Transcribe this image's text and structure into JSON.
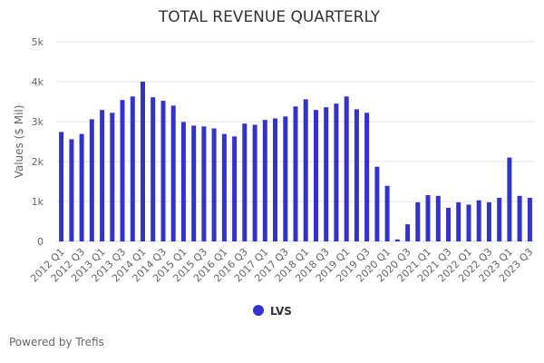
{
  "chart_data": {
    "type": "bar",
    "title": "TOTAL REVENUE QUARTERLY",
    "xlabel": "",
    "ylabel": "Values ($ Mil)",
    "ylim": [
      0,
      5000
    ],
    "yticks": [
      0,
      1000,
      2000,
      3000,
      4000,
      5000
    ],
    "ytick_labels": [
      "0",
      "1k",
      "2k",
      "3k",
      "4k",
      "5k"
    ],
    "grid": true,
    "legend_position": "bottom-center",
    "categories": [
      "2012 Q1",
      "2012 Q2",
      "2012 Q3",
      "2012 Q4",
      "2013 Q1",
      "2013 Q2",
      "2013 Q3",
      "2013 Q4",
      "2014 Q1",
      "2014 Q2",
      "2014 Q3",
      "2014 Q4",
      "2015 Q1",
      "2015 Q2",
      "2015 Q3",
      "2015 Q4",
      "2016 Q1",
      "2016 Q2",
      "2016 Q3",
      "2016 Q4",
      "2017 Q1",
      "2017 Q2",
      "2017 Q3",
      "2017 Q4",
      "2018 Q1",
      "2018 Q2",
      "2018 Q3",
      "2018 Q4",
      "2019 Q1",
      "2019 Q2",
      "2019 Q3",
      "2019 Q4",
      "2020 Q1",
      "2020 Q2",
      "2020 Q3",
      "2020 Q4",
      "2021 Q1",
      "2021 Q2",
      "2021 Q3",
      "2021 Q4",
      "2022 Q1",
      "2022 Q2",
      "2022 Q3",
      "2022 Q4",
      "2023 Q1",
      "2023 Q2",
      "2023 Q3"
    ],
    "xtick_labels_shown": [
      "2012 Q1",
      "2012 Q3",
      "2013 Q1",
      "2013 Q3",
      "2014 Q1",
      "2014 Q3",
      "2015 Q1",
      "2015 Q3",
      "2016 Q1",
      "2016 Q3",
      "2017 Q1",
      "2017 Q3",
      "2018 Q1",
      "2018 Q3",
      "2019 Q1",
      "2019 Q3",
      "2020 Q1",
      "2020 Q3",
      "2021 Q1",
      "2021 Q3",
      "2022 Q1",
      "2022 Q3",
      "2023 Q1",
      "2023 Q3"
    ],
    "series": [
      {
        "name": "LVS",
        "color": "#3333cc",
        "values": [
          2740,
          2560,
          2690,
          3060,
          3290,
          3220,
          3540,
          3630,
          4000,
          3610,
          3520,
          3400,
          2990,
          2900,
          2880,
          2830,
          2690,
          2630,
          2950,
          2920,
          3040,
          3080,
          3130,
          3380,
          3560,
          3290,
          3360,
          3450,
          3630,
          3310,
          3220,
          1870,
          1390,
          50,
          430,
          980,
          1160,
          1140,
          840,
          980,
          920,
          1030,
          980,
          1090,
          2100,
          1140,
          1090
        ]
      }
    ]
  },
  "footer": {
    "text": "Powered by Trefis"
  }
}
